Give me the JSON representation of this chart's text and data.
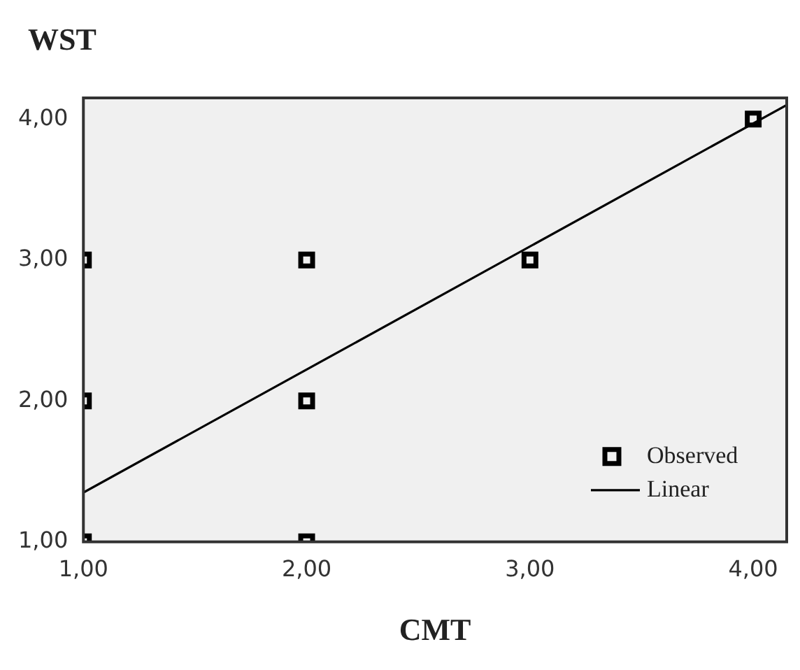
{
  "chart_data": {
    "type": "scatter",
    "xlabel": "CMT",
    "ylabel": "WST",
    "xlim": [
      1,
      4.15
    ],
    "ylim": [
      1,
      4.15
    ],
    "xticks": [
      {
        "value": 1,
        "label": "1,00"
      },
      {
        "value": 2,
        "label": "2,00"
      },
      {
        "value": 3,
        "label": "3,00"
      },
      {
        "value": 4,
        "label": "4,00"
      }
    ],
    "yticks": [
      {
        "value": 1,
        "label": "1,00"
      },
      {
        "value": 2,
        "label": "2,00"
      },
      {
        "value": 3,
        "label": "3,00"
      },
      {
        "value": 4,
        "label": "4,00"
      }
    ],
    "series": [
      {
        "name": "Observed",
        "type": "scatter",
        "color": "#000000",
        "marker": "square",
        "x": [
          1,
          1,
          1,
          2,
          2,
          2,
          3,
          4
        ],
        "values": [
          1,
          2,
          3,
          1,
          2,
          3,
          3,
          4
        ]
      },
      {
        "name": "Linear",
        "type": "line",
        "color": "#000000",
        "marker": "none",
        "line_style": "solid",
        "x": [
          1,
          4.15
        ],
        "values": [
          1.35,
          4.1
        ]
      }
    ],
    "legend": "bottom right",
    "grid": false
  }
}
